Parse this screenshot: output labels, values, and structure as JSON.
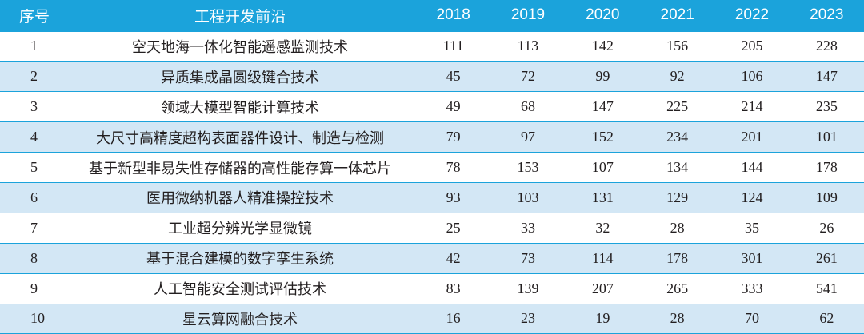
{
  "table": {
    "headers": {
      "index": "序号",
      "name": "工程开发前沿",
      "years": [
        "2018",
        "2019",
        "2020",
        "2021",
        "2022",
        "2023"
      ]
    },
    "rows": [
      {
        "index": "1",
        "name": "空天地海一体化智能遥感监测技术",
        "values": [
          "111",
          "113",
          "142",
          "156",
          "205",
          "228"
        ]
      },
      {
        "index": "2",
        "name": "异质集成晶圆级键合技术",
        "values": [
          "45",
          "72",
          "99",
          "92",
          "106",
          "147"
        ]
      },
      {
        "index": "3",
        "name": "领域大模型智能计算技术",
        "values": [
          "49",
          "68",
          "147",
          "225",
          "214",
          "235"
        ]
      },
      {
        "index": "4",
        "name": "大尺寸高精度超构表面器件设计、制造与检测",
        "values": [
          "79",
          "97",
          "152",
          "234",
          "201",
          "101"
        ]
      },
      {
        "index": "5",
        "name": "基于新型非易失性存储器的高性能存算一体芯片",
        "values": [
          "78",
          "153",
          "107",
          "134",
          "144",
          "178"
        ]
      },
      {
        "index": "6",
        "name": "医用微纳机器人精准操控技术",
        "values": [
          "93",
          "103",
          "131",
          "129",
          "124",
          "109"
        ]
      },
      {
        "index": "7",
        "name": "工业超分辨光学显微镜",
        "values": [
          "25",
          "33",
          "32",
          "28",
          "35",
          "26"
        ]
      },
      {
        "index": "8",
        "name": "基于混合建模的数字孪生系统",
        "values": [
          "42",
          "73",
          "114",
          "178",
          "301",
          "261"
        ]
      },
      {
        "index": "9",
        "name": "人工智能安全测试评估技术",
        "values": [
          "83",
          "139",
          "207",
          "265",
          "333",
          "541"
        ]
      },
      {
        "index": "10",
        "name": "星云算网融合技术",
        "values": [
          "16",
          "23",
          "19",
          "28",
          "70",
          "62"
        ]
      }
    ]
  },
  "colors": {
    "header_bg": "#1ba3db",
    "header_text": "#ffffff",
    "shaded_row": "#d3e7f5",
    "body_text": "#231f20"
  }
}
